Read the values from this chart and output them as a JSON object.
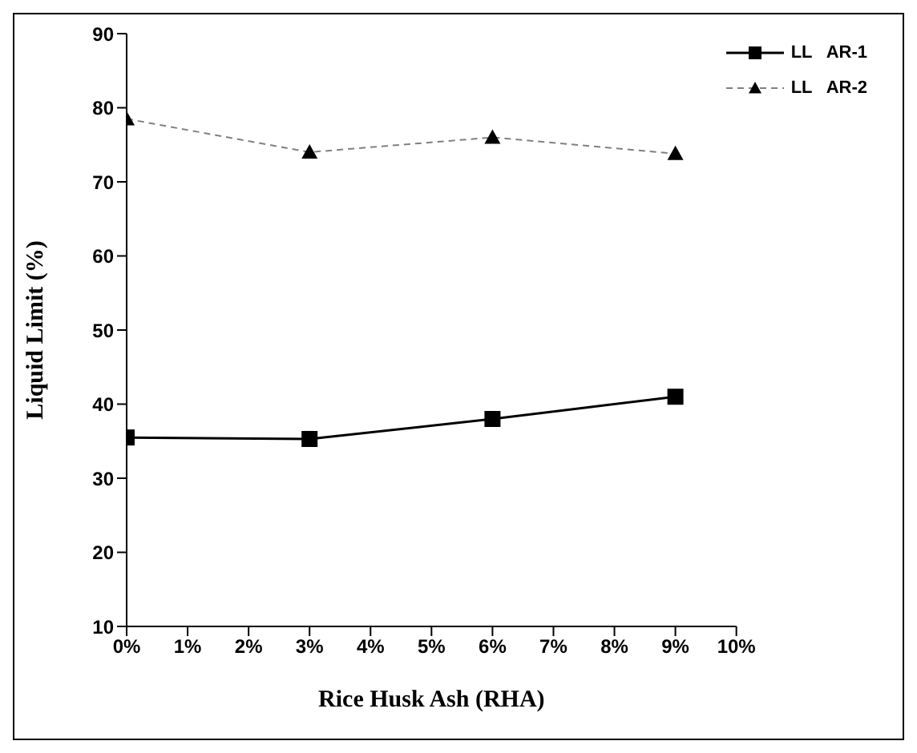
{
  "chart_data": {
    "type": "line",
    "xlabel": "Rice Husk Ash (RHA)",
    "ylabel": "Liquid Limit  (%)",
    "x": [
      0,
      3,
      6,
      9
    ],
    "series": [
      {
        "name": "LL   AR-1",
        "color": "#000000",
        "values": [
          35.5,
          35.3,
          38,
          41
        ],
        "marker": "square",
        "line_style": "solid"
      },
      {
        "name": "LL   AR-2",
        "color": "#808080",
        "values": [
          78.5,
          74,
          76,
          73.8
        ],
        "marker": "triangle",
        "line_style": "dashed"
      }
    ],
    "xlim": [
      0,
      10
    ],
    "xticks": [
      {
        "value": 0,
        "label": "0%"
      },
      {
        "value": 1,
        "label": "1%"
      },
      {
        "value": 2,
        "label": "2%"
      },
      {
        "value": 3,
        "label": "3%"
      },
      {
        "value": 4,
        "label": "4%"
      },
      {
        "value": 5,
        "label": "5%"
      },
      {
        "value": 6,
        "label": "6%"
      },
      {
        "value": 7,
        "label": "7%"
      },
      {
        "value": 8,
        "label": "8%"
      },
      {
        "value": 9,
        "label": "9%"
      },
      {
        "value": 10,
        "label": "10%"
      }
    ],
    "ylim": [
      10,
      90
    ],
    "yticks": [
      10,
      20,
      30,
      40,
      50,
      60,
      70,
      80,
      90
    ],
    "grid": false,
    "legend": "top right"
  }
}
